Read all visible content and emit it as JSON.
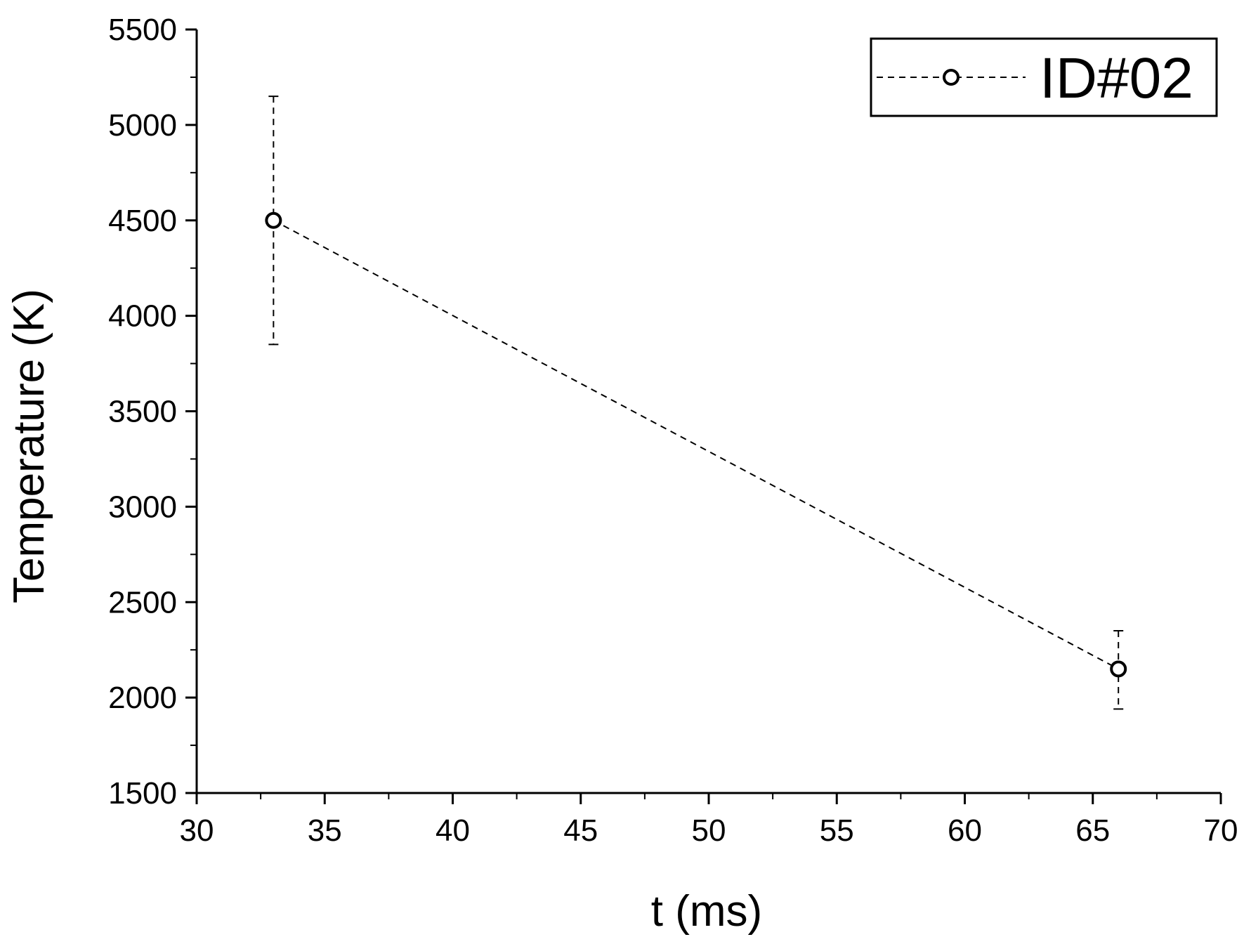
{
  "chart_data": {
    "type": "scatter",
    "title": "",
    "xlabel": "t (ms)",
    "ylabel": "Temperature (K)",
    "xlim": [
      30,
      70
    ],
    "ylim": [
      1500,
      5500
    ],
    "x_ticks": [
      30,
      35,
      40,
      45,
      50,
      55,
      60,
      65,
      70
    ],
    "y_ticks": [
      1500,
      2000,
      2500,
      3000,
      3500,
      4000,
      4500,
      5000,
      5500
    ],
    "x_minor_step": 2.5,
    "y_minor_step": 250,
    "grid": false,
    "legend_position": "top-right",
    "series": [
      {
        "name": "ID#02",
        "line_style": "dashed",
        "marker": "open-circle",
        "color": "#000000",
        "points": [
          {
            "x": 33,
            "y": 4500,
            "y_err_low": 3850,
            "y_err_high": 5150
          },
          {
            "x": 66,
            "y": 2150,
            "y_err_low": 1940,
            "y_err_high": 2350
          }
        ]
      }
    ]
  }
}
